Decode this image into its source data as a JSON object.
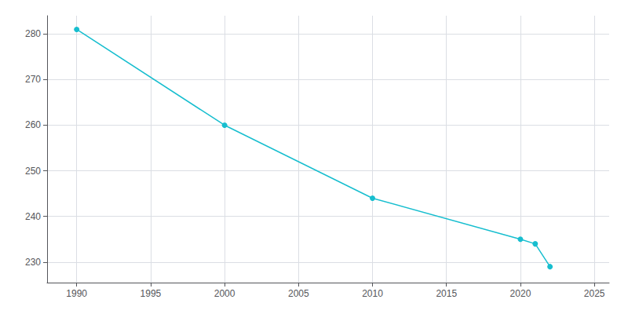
{
  "chart_data": {
    "type": "line",
    "x": [
      1990,
      2000,
      2010,
      2020,
      2021,
      2022
    ],
    "values": [
      281,
      260,
      244,
      235,
      234,
      229
    ],
    "color": "#17BECF",
    "marker": "circle",
    "xlim": [
      1988,
      2026
    ],
    "ylim": [
      225.5,
      284
    ],
    "xticks": [
      1990,
      1995,
      2000,
      2005,
      2010,
      2015,
      2020,
      2025
    ],
    "yticks": [
      230,
      240,
      250,
      260,
      270,
      280
    ],
    "grid": true
  }
}
